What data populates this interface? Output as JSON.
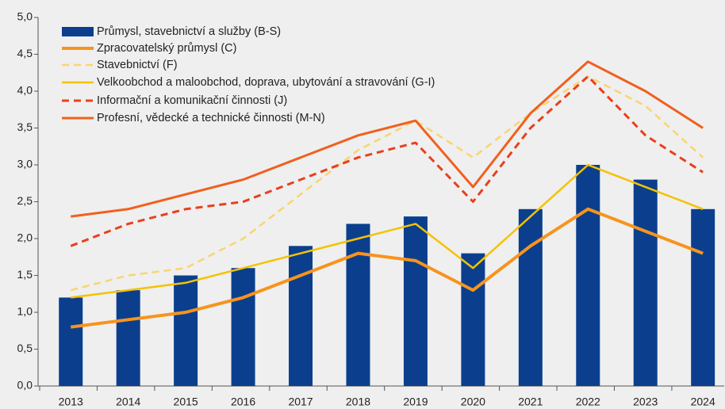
{
  "chart_data": {
    "type": "bar",
    "categories": [
      "2013",
      "2014",
      "2015",
      "2016",
      "2017",
      "2018",
      "2019",
      "2020",
      "2021",
      "2022",
      "2023",
      "2024"
    ],
    "ylim": [
      0,
      5
    ],
    "yticks": [
      {
        "value": 0,
        "label": "0,0"
      },
      {
        "value": 0.5,
        "label": "0,5"
      },
      {
        "value": 1,
        "label": "1,0"
      },
      {
        "value": 1.5,
        "label": "1,5"
      },
      {
        "value": 2,
        "label": "2,0"
      },
      {
        "value": 2.5,
        "label": "2,5"
      },
      {
        "value": 3,
        "label": "3,0"
      },
      {
        "value": 3.5,
        "label": "3,5"
      },
      {
        "value": 4,
        "label": "4,0"
      },
      {
        "value": 4.5,
        "label": "4,5"
      },
      {
        "value": 5,
        "label": "5,0"
      }
    ],
    "grid": false,
    "legend": "upper left",
    "series": [
      {
        "name": "Průmysl, stavebnictví a služby (B-S)",
        "type": "bar",
        "color": "#0b3f8e",
        "values": [
          1.2,
          1.3,
          1.5,
          1.6,
          1.9,
          2.2,
          2.3,
          1.8,
          2.4,
          3.0,
          2.8,
          2.4
        ]
      },
      {
        "name": "Zpracovatelský průmysl (C)",
        "type": "line",
        "color": "#f7941d",
        "width": 4,
        "dashed": false,
        "values": [
          0.8,
          0.9,
          1.0,
          1.2,
          1.5,
          1.8,
          1.7,
          1.3,
          1.9,
          2.4,
          2.1,
          1.8
        ]
      },
      {
        "name": "Stavebnictví (F)",
        "type": "line",
        "color": "#f9d56e",
        "width": 2.5,
        "dashed": true,
        "values": [
          1.3,
          1.5,
          1.6,
          2.0,
          2.6,
          3.2,
          3.6,
          3.1,
          3.7,
          4.2,
          3.8,
          3.1
        ]
      },
      {
        "name": "Velkoobchod a maloobchod, doprava, ubytování a stravování (G-I)",
        "type": "line",
        "color": "#f5c200",
        "width": 2.5,
        "dashed": false,
        "values": [
          1.2,
          1.3,
          1.4,
          1.6,
          1.8,
          2.0,
          2.2,
          1.6,
          2.3,
          3.0,
          2.7,
          2.4
        ]
      },
      {
        "name": "Informační a komunikační činnosti (J)",
        "type": "line",
        "color": "#e8401c",
        "width": 3,
        "dashed": true,
        "values": [
          1.9,
          2.2,
          2.4,
          2.5,
          2.8,
          3.1,
          3.3,
          2.5,
          3.5,
          4.2,
          3.4,
          2.9
        ]
      },
      {
        "name": "Profesní, vědecké a technické činnosti (M-N)",
        "type": "line",
        "color": "#f0601e",
        "width": 3,
        "dashed": false,
        "values": [
          2.3,
          2.4,
          2.6,
          2.8,
          3.1,
          3.4,
          3.6,
          2.7,
          3.7,
          4.4,
          4.0,
          3.5
        ]
      }
    ]
  }
}
